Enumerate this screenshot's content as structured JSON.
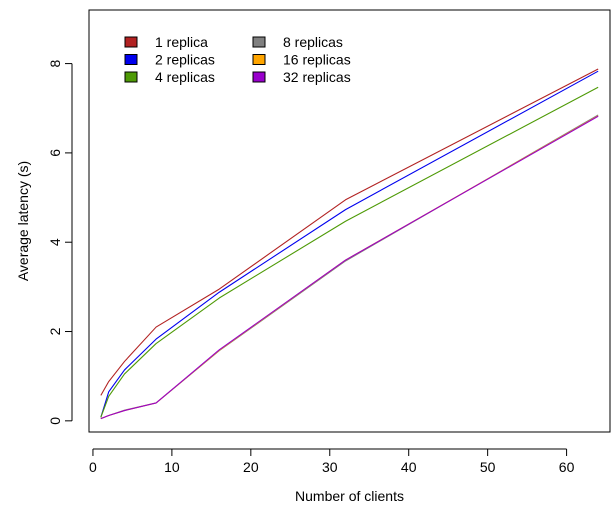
{
  "chart_data": {
    "type": "line",
    "title": "",
    "xlabel": "Number of clients",
    "ylabel": "Average latency (s)",
    "xlim": [
      -0.5,
      65.5
    ],
    "ylim": [
      -0.25,
      9.2
    ],
    "xticks": [
      0,
      10,
      20,
      30,
      40,
      50,
      60
    ],
    "yticks": [
      0,
      2,
      4,
      6,
      8
    ],
    "grid": false,
    "legend_position": "top-left",
    "x": [
      1,
      2,
      4,
      8,
      16,
      32,
      64
    ],
    "series": [
      {
        "name": "1 replica",
        "color": "#b22222",
        "values": [
          0.57,
          0.88,
          1.33,
          2.1,
          2.95,
          4.95,
          7.88
        ]
      },
      {
        "name": "2 replicas",
        "color": "#0000ee",
        "values": [
          0.08,
          0.65,
          1.14,
          1.83,
          2.88,
          4.73,
          7.83
        ]
      },
      {
        "name": "4 replicas",
        "color": "#4e9a06",
        "values": [
          0.08,
          0.55,
          1.05,
          1.73,
          2.75,
          4.47,
          7.47
        ]
      },
      {
        "name": "8 replicas",
        "color": "#808080",
        "values": [
          0.05,
          0.12,
          0.24,
          0.4,
          1.57,
          3.58,
          6.85
        ]
      },
      {
        "name": "16 replicas",
        "color": "#ffa500",
        "values": [
          0.05,
          0.12,
          0.23,
          0.4,
          1.58,
          3.6,
          6.83
        ]
      },
      {
        "name": "32 replicas",
        "color": "#9900cc",
        "values": [
          0.05,
          0.12,
          0.23,
          0.4,
          1.59,
          3.6,
          6.82
        ]
      }
    ]
  }
}
